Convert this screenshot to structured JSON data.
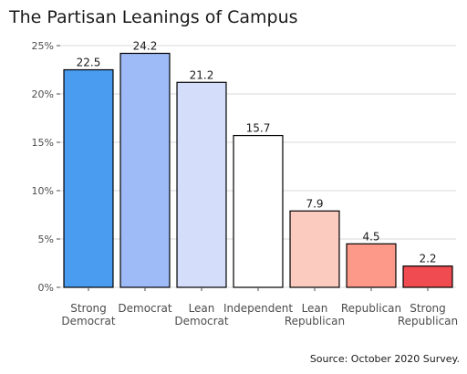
{
  "chart_data": {
    "type": "bar",
    "title": "The Partisan Leanings of Campus",
    "caption": "Source: October 2020 Survey.",
    "categories": [
      [
        "Strong",
        "Democrat"
      ],
      [
        "Democrat"
      ],
      [
        "Lean",
        "Democrat"
      ],
      [
        "Independent"
      ],
      [
        "Lean",
        "Republican"
      ],
      [
        "Republican"
      ],
      [
        "Strong",
        "Republican"
      ]
    ],
    "values": [
      22.5,
      24.2,
      21.2,
      15.7,
      7.9,
      4.5,
      2.2
    ],
    "value_labels": [
      "22.5",
      "24.2",
      "21.2",
      "15.7",
      "7.9",
      "4.5",
      "2.2"
    ],
    "colors": [
      "#4a9cf0",
      "#9fbbf7",
      "#d4ddfa",
      "#ffffff",
      "#fccbc0",
      "#fc9988",
      "#f04b50"
    ],
    "ylim": [
      0,
      25
    ],
    "yticks": [
      0,
      5,
      10,
      15,
      20,
      25
    ],
    "ytick_labels": [
      "0%",
      "5%",
      "10%",
      "15%",
      "20%",
      "25%"
    ],
    "xlabel": "",
    "ylabel": "",
    "grid": true,
    "legend": "none"
  }
}
